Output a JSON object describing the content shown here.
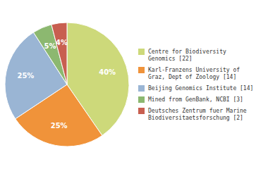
{
  "chart_data": {
    "type": "pie",
    "categories": [
      "Centre for Biodiversity\nGenomics [22]",
      "Karl-Franzens University of\nGraz, Dept of Zoology [14]",
      "Beijing Genomics Institute [14]",
      "Mined from GenBank, NCBI [3]",
      "Deutsches Zentrum fuer Marine\nBiodiversitaetsforschung [2]"
    ],
    "values": [
      40,
      25,
      25,
      5,
      4
    ],
    "value_labels": [
      "40%",
      "25%",
      "25%",
      "5%",
      "4%"
    ],
    "colors": [
      "#cdd97a",
      "#f0933a",
      "#9ab5d4",
      "#8cb870",
      "#c85f50"
    ],
    "data_labels": true,
    "legend": "right"
  }
}
